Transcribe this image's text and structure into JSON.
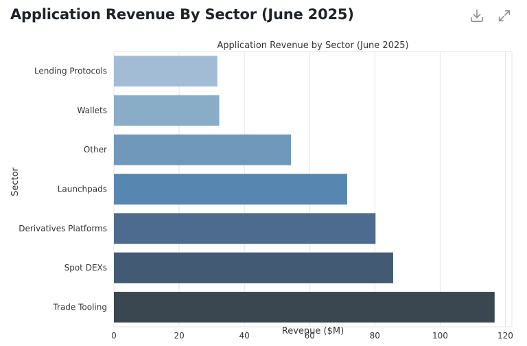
{
  "header": {
    "title": "Application Revenue By Sector (June 2025)",
    "download_icon": "download-icon",
    "expand_icon": "expand-icon"
  },
  "chart_data": {
    "type": "bar",
    "orientation": "horizontal",
    "title": "Application Revenue by Sector (June 2025)",
    "xlabel": "Revenue ($M)",
    "ylabel": "Sector",
    "xlim": [
      0,
      122
    ],
    "xticks": [
      0,
      20,
      40,
      60,
      80,
      100,
      120
    ],
    "grid": "vertical",
    "categories": [
      "Lending Protocols",
      "Wallets",
      "Other",
      "Launchpads",
      "Derivatives Platforms",
      "Spot DEXs",
      "Trade Tooling"
    ],
    "values": [
      31.7,
      32.3,
      54.3,
      71.5,
      80.2,
      85.6,
      116.7
    ],
    "colors": [
      "#a3bcd6",
      "#8aadc7",
      "#6f98ba",
      "#5787b0",
      "#4c6b8f",
      "#435a74",
      "#3a4750"
    ]
  }
}
